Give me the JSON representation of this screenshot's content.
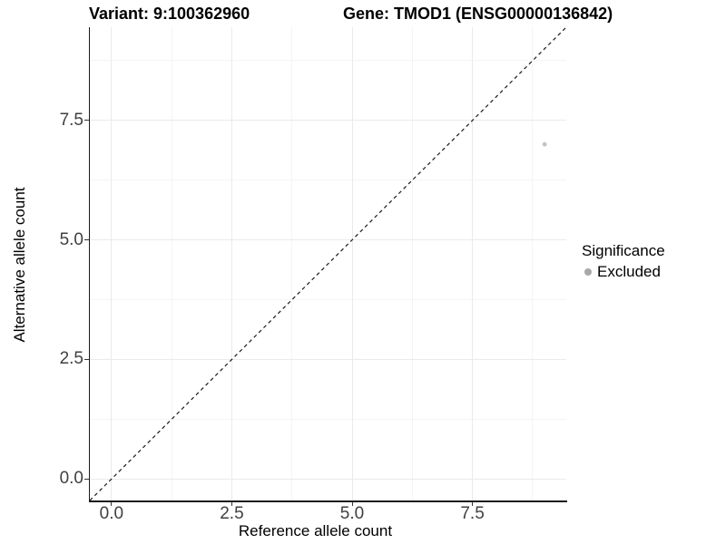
{
  "title": {
    "variant": "Variant: 9:100362960",
    "gene": "Gene: TMOD1 (ENSG00000136842)"
  },
  "chart_data": {
    "type": "scatter",
    "title": "Variant: 9:100362960   Gene: TMOD1 (ENSG00000136842)",
    "xlabel": "Reference allele count",
    "ylabel": "Alternative allele count",
    "xlim": [
      -0.45,
      9.45
    ],
    "ylim": [
      -0.45,
      9.45
    ],
    "x_major_ticks": [
      0,
      2.5,
      5,
      7.5
    ],
    "x_tick_labels": [
      "0.0",
      "2.5",
      "5.0",
      "7.5"
    ],
    "y_major_ticks": [
      0,
      2.5,
      5,
      7.5
    ],
    "y_tick_labels": [
      "0.0",
      "2.5",
      "5.0",
      "7.5"
    ],
    "x_minor_ticks": [
      1.25,
      3.75,
      6.25,
      8.75
    ],
    "y_minor_ticks": [
      1.25,
      3.75,
      6.25,
      8.75
    ],
    "grid": "major and minor gridlines, very light grey on white",
    "series": [
      {
        "name": "Excluded",
        "points": [
          [
            9,
            7
          ]
        ],
        "color": "#c4c4c4",
        "point_radius": 2.4
      }
    ],
    "reference_line": {
      "kind": "identity y = x, corner to corner",
      "style": "dashed",
      "color": "#1a1a1a"
    },
    "legend": {
      "position": "right",
      "title": "Significance",
      "entries": [
        {
          "label": "Excluded",
          "marker_color": "#a8a8a8"
        }
      ]
    }
  },
  "colors": {
    "background": "#ffffff",
    "axis_line": "#1a1a1a",
    "tick_text": "#404040",
    "grid_major": "#eaeaea",
    "grid_minor": "#f4f4f4"
  }
}
